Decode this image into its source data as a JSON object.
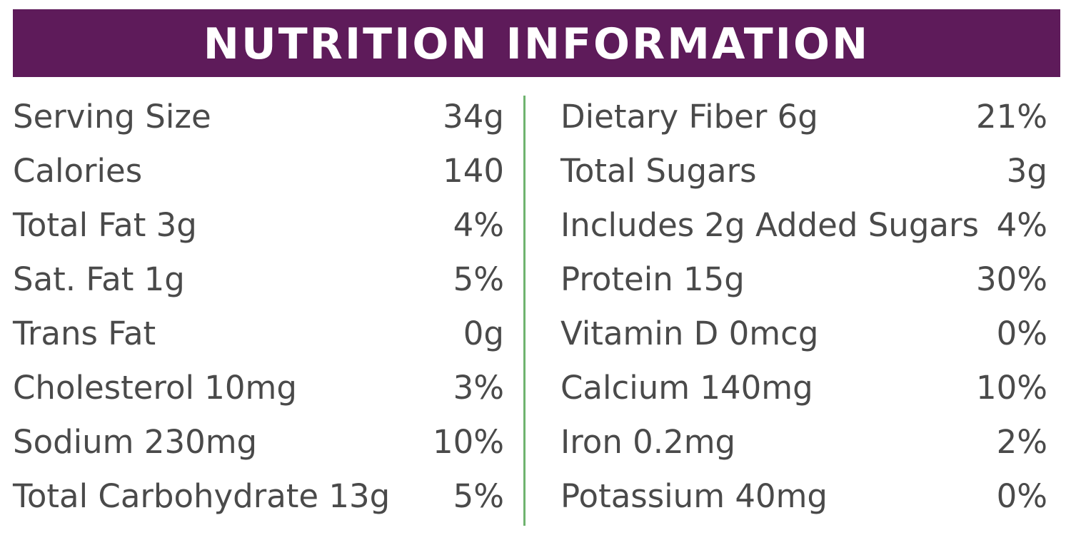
{
  "header": {
    "title": "NUTRITION INFORMATION"
  },
  "colors": {
    "header_background": "#5e1b5a",
    "header_text": "#ffffff",
    "body_text": "#4a4a4a",
    "divider": "#6fb36f"
  },
  "left_column": [
    {
      "label": "Serving Size",
      "value": "34g"
    },
    {
      "label": "Calories",
      "value": "140"
    },
    {
      "label": "Total Fat 3g",
      "value": "4%"
    },
    {
      "label": "Sat. Fat 1g",
      "value": "5%"
    },
    {
      "label": "Trans Fat",
      "value": "0g"
    },
    {
      "label": "Cholesterol 10mg",
      "value": "3%"
    },
    {
      "label": "Sodium 230mg",
      "value": "10%"
    },
    {
      "label": "Total Carbohydrate 13g",
      "value": "5%"
    }
  ],
  "right_column": [
    {
      "label": "Dietary Fiber 6g",
      "value": "21%"
    },
    {
      "label": "Total Sugars",
      "value": "3g"
    },
    {
      "label": "Includes 2g Added Sugars",
      "value": "4%"
    },
    {
      "label": "Protein 15g",
      "value": "30%"
    },
    {
      "label": "Vitamin D 0mcg",
      "value": "0%"
    },
    {
      "label": "Calcium 140mg",
      "value": "10%"
    },
    {
      "label": "Iron 0.2mg",
      "value": "2%"
    },
    {
      "label": "Potassium 40mg",
      "value": "0%"
    }
  ]
}
